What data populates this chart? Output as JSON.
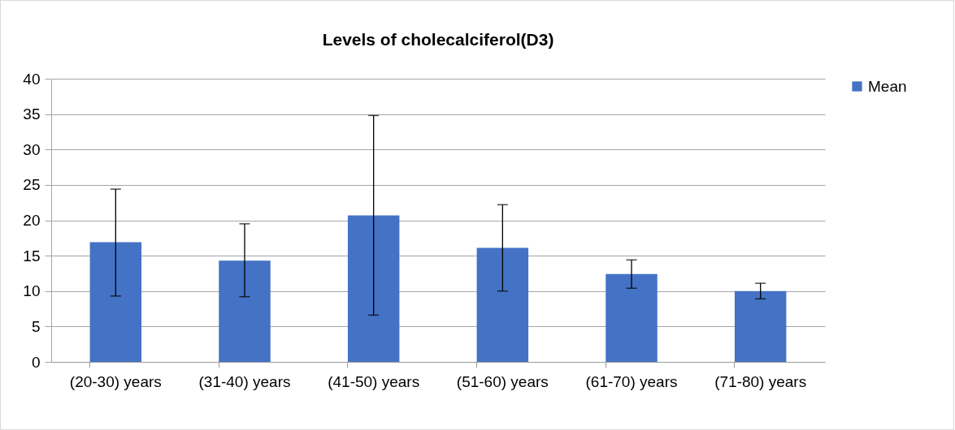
{
  "chart_data": {
    "type": "bar",
    "title": "Levels of cholecalciferol(D3)",
    "categories": [
      "(20-30) years",
      "(31-40) years",
      "(41-50) years",
      "(51-60) years",
      "(61-70) years",
      "(71-80) years"
    ],
    "series": [
      {
        "name": "Mean",
        "color": "#4472c4",
        "values": [
          16.9,
          14.3,
          20.7,
          16.1,
          12.4,
          10.0
        ],
        "errors": [
          [
            9.3,
            24.4
          ],
          [
            9.2,
            19.5
          ],
          [
            6.6,
            34.8
          ],
          [
            10.0,
            22.2
          ],
          [
            10.4,
            14.4
          ],
          [
            8.9,
            11.1
          ]
        ]
      }
    ],
    "ylim": [
      0,
      40
    ],
    "yticks": [
      0,
      5,
      10,
      15,
      20,
      25,
      30,
      35,
      40
    ],
    "grid": "y",
    "legend": "right"
  }
}
